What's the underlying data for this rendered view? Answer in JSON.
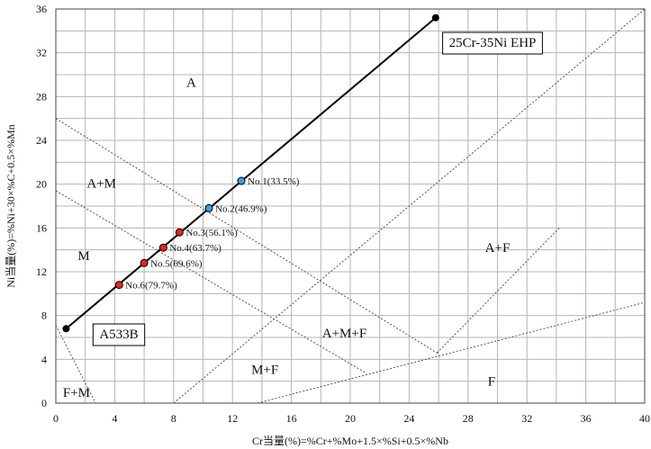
{
  "chart_data": {
    "type": "scatter",
    "xlabel": "Cr当量(%)=%Cr+%Mo+1.5×%Si+0.5×%Nb",
    "ylabel": "Ni当量(%)=%Ni+30×%C+0.5×%Mn",
    "xlim": [
      0,
      40
    ],
    "ylim": [
      0,
      36
    ],
    "grid": true,
    "x_ticks": [
      0,
      4,
      8,
      12,
      16,
      20,
      24,
      28,
      32,
      36,
      40
    ],
    "y_ticks": [
      0,
      4,
      8,
      12,
      16,
      20,
      24,
      28,
      32,
      36
    ],
    "regions": [
      {
        "label": "A",
        "x": 9.2,
        "y": 29.3
      },
      {
        "label": "A+M",
        "x": 3.1,
        "y": 20.1
      },
      {
        "label": "M",
        "x": 1.9,
        "y": 13.5
      },
      {
        "label": "A+F",
        "x": 30.0,
        "y": 14.2
      },
      {
        "label": "A+M+F",
        "x": 19.6,
        "y": 6.4
      },
      {
        "label": "M+F",
        "x": 14.2,
        "y": 3.1
      },
      {
        "label": "F+M",
        "x": 1.4,
        "y": 1.0
      },
      {
        "label": "F",
        "x": 29.6,
        "y": 2.0
      }
    ],
    "mixing_line": {
      "start": {
        "label": "A533B",
        "x": 0.7,
        "y": 6.8
      },
      "end": {
        "label": "25Cr-35Ni EHP",
        "x": 25.8,
        "y": 35.2
      }
    },
    "series": [
      {
        "color": "#39a0dc",
        "points": [
          {
            "label": "No.1(33.5%)",
            "x": 12.6,
            "y": 20.3
          },
          {
            "label": "No.2(46.9%)",
            "x": 10.4,
            "y": 17.8
          }
        ]
      },
      {
        "color": "#e8251f",
        "points": [
          {
            "label": "No.3(56.1%)",
            "x": 8.4,
            "y": 15.6
          },
          {
            "label": "No.4(63.7%)",
            "x": 7.3,
            "y": 14.2
          },
          {
            "label": "No.5(69.6%)",
            "x": 6.0,
            "y": 12.8
          },
          {
            "label": "No.6(79.7%)",
            "x": 4.3,
            "y": 10.8
          }
        ]
      }
    ],
    "boundaries": [
      {
        "from": [
          0,
          26
        ],
        "to": [
          26,
          4.5
        ]
      },
      {
        "from": [
          0,
          19.4
        ],
        "to": [
          21,
          2.8
        ]
      },
      {
        "from": [
          8.0,
          0
        ],
        "to": [
          40,
          36
        ]
      },
      {
        "from": [
          13.7,
          0
        ],
        "to": [
          40,
          9.2
        ]
      },
      {
        "from": [
          0,
          7.1
        ],
        "to": [
          2.7,
          0
        ]
      },
      {
        "from": [
          25.9,
          4.6
        ],
        "to": [
          34.2,
          16.0
        ]
      }
    ]
  }
}
